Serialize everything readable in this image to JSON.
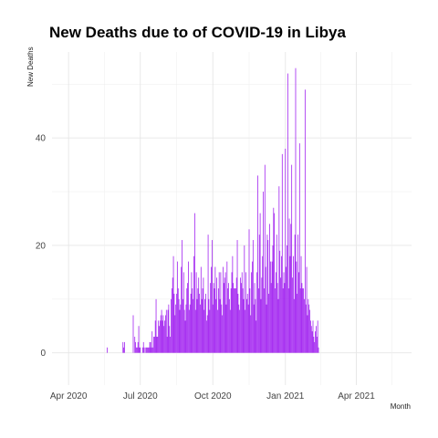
{
  "chart_data": {
    "type": "bar",
    "title": "New Deaths due to of COVID-19 in Libya",
    "xlabel": "Month",
    "ylabel": "New Deaths",
    "x_ticks": [
      {
        "label": "Apr 2020",
        "date": "2020-04-01"
      },
      {
        "label": "Jul 2020",
        "date": "2020-07-01"
      },
      {
        "label": "Oct 2020",
        "date": "2020-10-01"
      },
      {
        "label": "Jan 2021",
        "date": "2021-01-01"
      },
      {
        "label": "Apr 2021",
        "date": "2021-04-01"
      }
    ],
    "y_ticks": [
      0,
      20,
      40
    ],
    "xlim": [
      "2020-03-11",
      "2021-06-10"
    ],
    "ylim": [
      -6,
      56
    ],
    "grid": true,
    "bar_color": "#A020F0",
    "start_date": "2020-05-20",
    "values": [
      1,
      0,
      0,
      0,
      0,
      0,
      0,
      0,
      0,
      0,
      0,
      0,
      0,
      0,
      0,
      0,
      0,
      0,
      0,
      0,
      2,
      1,
      2,
      0,
      0,
      0,
      0,
      0,
      0,
      0,
      0,
      0,
      0,
      7,
      0,
      3,
      2,
      1,
      1,
      2,
      5,
      1,
      1,
      0,
      0,
      1,
      2,
      1,
      0,
      1,
      1,
      1,
      1,
      1,
      2,
      2,
      1,
      4,
      1,
      3,
      3,
      6,
      10,
      3,
      3,
      6,
      5,
      6,
      7,
      8,
      6,
      7,
      5,
      6,
      7,
      8,
      3,
      8,
      9,
      5,
      3,
      10,
      12,
      14,
      18,
      11,
      7,
      9,
      11,
      17,
      12,
      10,
      8,
      9,
      16,
      21,
      10,
      15,
      8,
      6,
      9,
      12,
      13,
      17,
      8,
      9,
      11,
      15,
      12,
      10,
      18,
      26,
      8,
      15,
      10,
      12,
      14,
      11,
      9,
      16,
      10,
      12,
      14,
      8,
      10,
      11,
      6,
      7,
      22,
      10,
      8,
      13,
      16,
      21,
      9,
      13,
      12,
      16,
      10,
      14,
      8,
      12,
      15,
      10,
      15,
      9,
      7,
      16,
      13,
      14,
      15,
      9,
      17,
      12,
      13,
      10,
      8,
      12,
      15,
      18,
      13,
      12,
      12,
      12,
      14,
      21,
      11,
      9,
      8,
      14,
      13,
      15,
      12,
      10,
      20,
      8,
      15,
      10,
      11,
      9,
      23,
      12,
      7,
      15,
      17,
      21,
      9,
      13,
      10,
      6,
      15,
      33,
      12,
      22,
      26,
      10,
      14,
      18,
      30,
      12,
      35,
      16,
      9,
      22,
      21,
      11,
      24,
      17,
      13,
      17,
      20,
      27,
      26,
      12,
      15,
      22,
      13,
      10,
      31,
      19,
      14,
      18,
      37,
      12,
      15,
      13,
      38,
      16,
      20,
      52,
      12,
      25,
      18,
      24,
      35,
      14,
      18,
      10,
      22,
      53,
      17,
      11,
      22,
      15,
      39,
      12,
      18,
      13,
      12,
      12,
      10,
      49,
      9,
      16,
      7,
      10,
      9,
      8,
      6,
      5,
      4,
      6,
      3,
      2,
      4,
      5,
      3,
      6,
      1
    ]
  }
}
